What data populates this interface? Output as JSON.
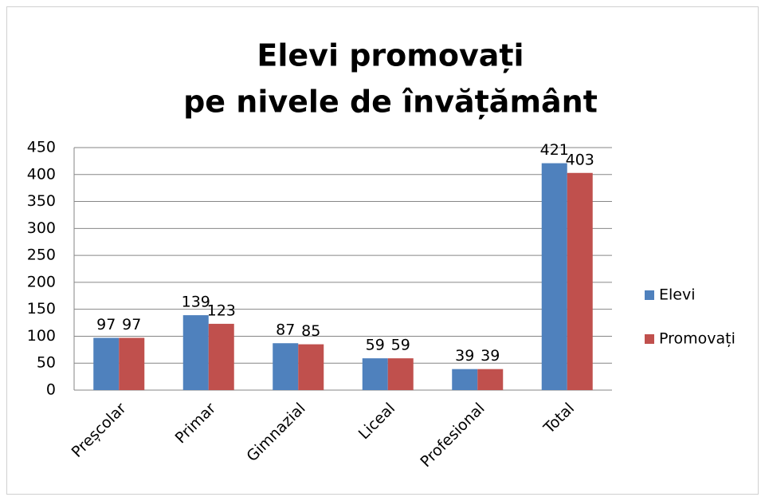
{
  "chart_data": {
    "type": "bar",
    "title": [
      "Elevi promovați",
      "pe nivele de învățământ"
    ],
    "categories": [
      "Preșcolar",
      "Primar",
      "Gimnazial",
      "Liceal",
      "Profesional",
      "Total"
    ],
    "series": [
      {
        "name": "Elevi",
        "color": "#4f81bd",
        "values": [
          97,
          139,
          87,
          59,
          39,
          421
        ]
      },
      {
        "name": "Promovați",
        "color": "#c0504d",
        "values": [
          97,
          123,
          85,
          59,
          39,
          403
        ]
      }
    ],
    "ylim": [
      0,
      450
    ],
    "yticks": [
      0,
      50,
      100,
      150,
      200,
      250,
      300,
      350,
      400,
      450
    ],
    "grid": true,
    "legend": "right"
  }
}
